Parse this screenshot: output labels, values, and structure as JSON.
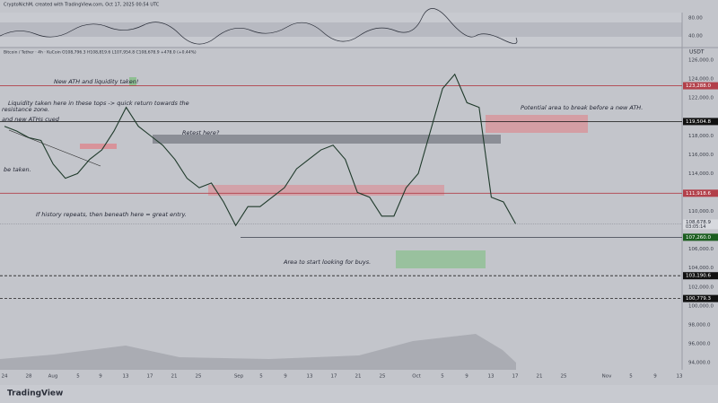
{
  "header": {
    "credit": "CryptoNichM, created with TradingView.com, Oct 17, 2025 00:54 UTC",
    "symbol": "Bitcoin / Tether · 4h · KuCoin  O108,796.3 H108,819.6 L107,954.8 C108,678.9 +478.0 (+0.44%)",
    "currency": "USDT"
  },
  "rsi": {
    "ticks": [
      {
        "value": 80,
        "label": "80.00"
      },
      {
        "value": 40,
        "label": "40.00"
      }
    ]
  },
  "chart": {
    "ylim": [
      94000,
      126000
    ],
    "yticks": [
      {
        "value": 126000,
        "label": "126,000.0"
      },
      {
        "value": 124000,
        "label": "124,000.0"
      },
      {
        "value": 122000,
        "label": "122,000.0"
      },
      {
        "value": 118000,
        "label": "118,000.0"
      },
      {
        "value": 116000,
        "label": "116,000.0"
      },
      {
        "value": 114000,
        "label": "114,000.0"
      },
      {
        "value": 110000,
        "label": "110,000.0"
      },
      {
        "value": 106000,
        "label": "106,000.0"
      },
      {
        "value": 104000,
        "label": "104,000.0"
      },
      {
        "value": 102000,
        "label": "102,000.0"
      },
      {
        "value": 100000,
        "label": "100,000.0"
      },
      {
        "value": 98000,
        "label": "98,000.0"
      },
      {
        "value": 96000,
        "label": "96,000.0"
      },
      {
        "value": 94000,
        "label": "94,000.0"
      }
    ],
    "levels": [
      {
        "value": 123288,
        "label": "123,288.0",
        "color": "#b2404a"
      },
      {
        "value": 119504.8,
        "label": "119,504.8",
        "color": "#111111"
      },
      {
        "value": 111918.6,
        "label": "111,918.6",
        "color": "#b2404a"
      },
      {
        "value": 107260,
        "label": "107,260.0",
        "color": "#3b3f4a"
      },
      {
        "value": 103190.6,
        "label": "103,190.6",
        "color": "#222222"
      },
      {
        "value": 100779.3,
        "label": "100,779.3",
        "color": "#222222"
      }
    ],
    "last": {
      "value": 108678.9,
      "label": "108,678.9",
      "timer": "03:05:14"
    },
    "closes": [
      119000,
      118500,
      117800,
      117500,
      115000,
      113500,
      114000,
      115500,
      116500,
      118500,
      121000,
      119000,
      118000,
      117000,
      115500,
      113500,
      112500,
      113000,
      111000,
      108500,
      110500,
      110500,
      111500,
      112500,
      114500,
      115500,
      116500,
      117000,
      115500,
      112000,
      111500,
      109500,
      109500,
      112500,
      114000,
      118500,
      123000,
      124500,
      121500,
      121000,
      111500,
      111000,
      108678.9
    ],
    "xticks": [
      "24",
      "28",
      "Aug",
      "5",
      "9",
      "13",
      "17",
      "21",
      "25",
      "Sep",
      "5",
      "9",
      "13",
      "17",
      "21",
      "25",
      "Oct",
      "5",
      "9",
      "13",
      "17",
      "21",
      "25",
      "Nov",
      "5",
      "9",
      "13"
    ]
  },
  "annotations": [
    "New ATH and liquidity taken!",
    "Liquidity taken here in these tops -> quick return towards the",
    "resistance zone.",
    "and new ATHs cued",
    "Retest here?",
    "be taken.",
    "If history repeats, then beneath here = great entry.",
    "Potential area to break before a new ATH.",
    "Area to start looking for buys."
  ],
  "footer": {
    "brand": "TradingView"
  }
}
